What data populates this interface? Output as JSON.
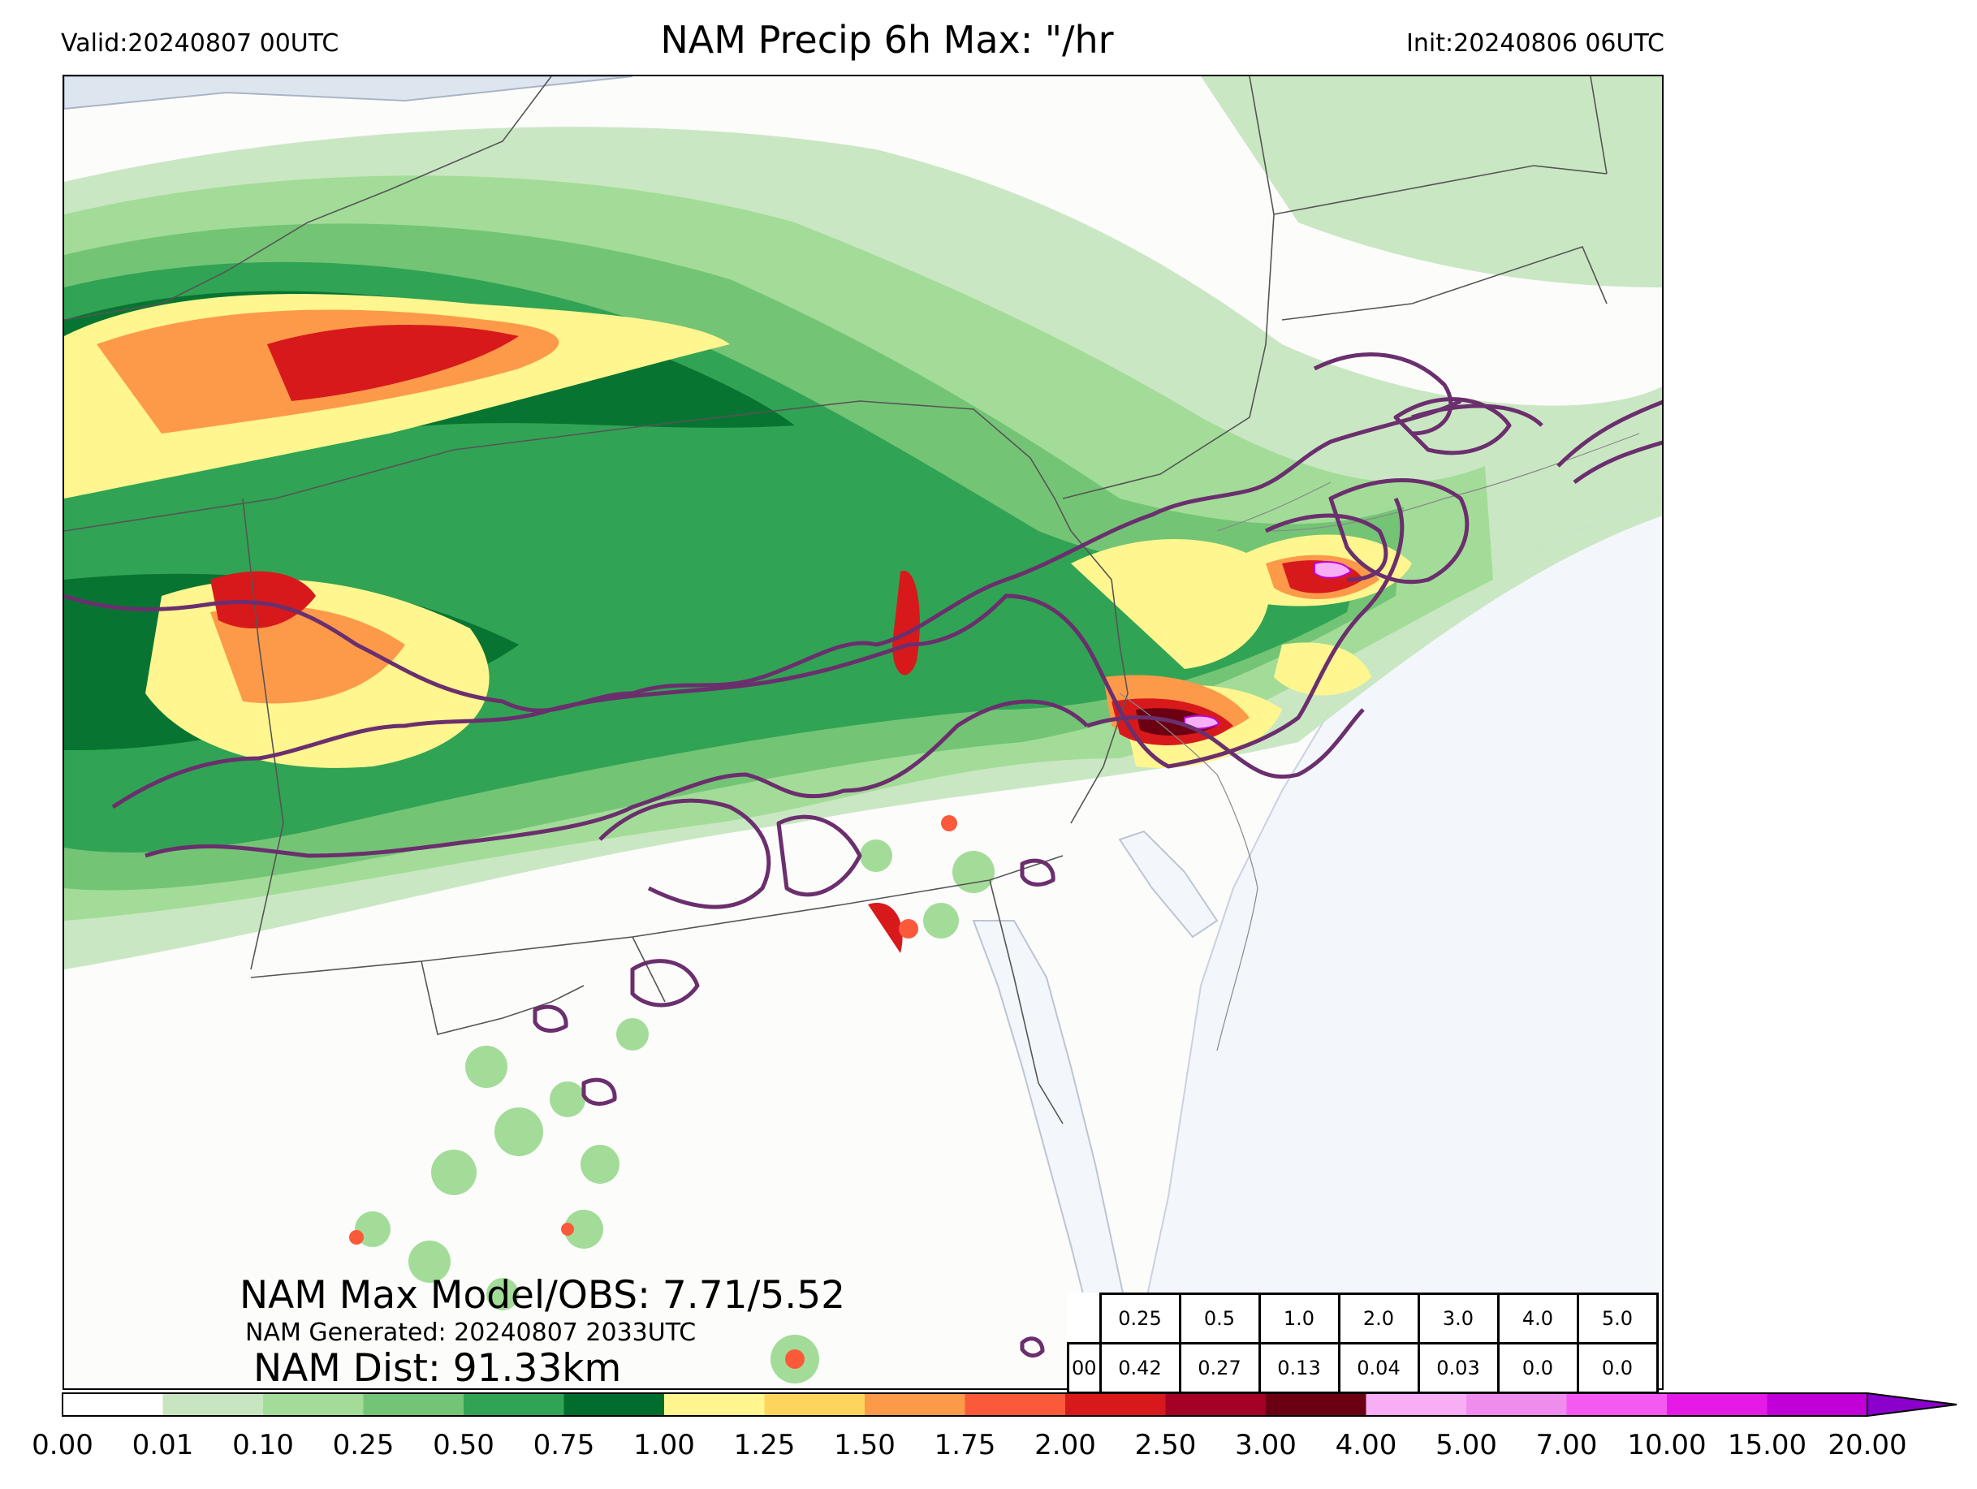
{
  "header": {
    "valid": "Valid:20240807 00UTC",
    "title": "NAM Precip 6h Max: \"/hr",
    "init": "Init:20240806 06UTC"
  },
  "stats": {
    "model_obs": "NAM Max Model/OBS: 7.71/5.52",
    "generated": "NAM Generated: 20240807 2033UTC",
    "distance": "NAM Dist: 91.33km"
  },
  "threshold_table": {
    "thresholds": [
      "0.25",
      "0.5",
      "1.0",
      "2.0",
      "3.0",
      "4.0",
      "5.0"
    ],
    "row_label": "00",
    "values": [
      "0.42",
      "0.27",
      "0.13",
      "0.04",
      "0.03",
      "0.0",
      "0.0"
    ]
  },
  "colorbar": {
    "ticks": [
      "0.00",
      "0.01",
      "0.10",
      "0.25",
      "0.50",
      "0.75",
      "1.00",
      "1.25",
      "1.50",
      "1.75",
      "2.00",
      "2.50",
      "3.00",
      "4.00",
      "5.00",
      "7.00",
      "10.00",
      "15.00",
      "20.00"
    ],
    "colors": [
      "#ffffff",
      "#c7e6c0",
      "#a3dc98",
      "#74c476",
      "#31a354",
      "#006d2c",
      "#fff68f",
      "#fdd55c",
      "#fd9a4a",
      "#fb5a3a",
      "#d7191c",
      "#a50026",
      "#6b0012",
      "#f7aef5",
      "#f08ced",
      "#f45af0",
      "#e61ae6",
      "#c000d6",
      "#8b00cc"
    ]
  },
  "colors": {
    "water": "#f3f6fb",
    "obs_contour": "#6b2f6e",
    "border": "#555555"
  }
}
